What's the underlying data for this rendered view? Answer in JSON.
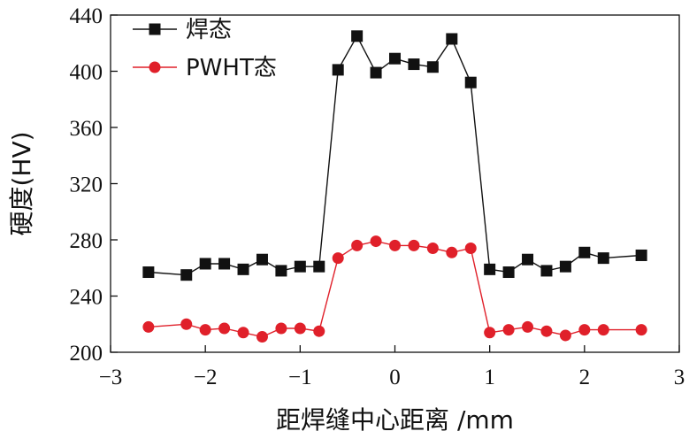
{
  "chart_data": {
    "type": "line",
    "xlabel": "距焊缝中心距离 /mm",
    "ylabel": "硬度(HV)",
    "xlim": [
      -3,
      3
    ],
    "ylim": [
      200,
      440
    ],
    "xticks": [
      "−3",
      "−2",
      "−1",
      "0",
      "1",
      "2",
      "3"
    ],
    "xtick_values": [
      -3,
      -2,
      -1,
      0,
      1,
      2,
      3
    ],
    "yticks": [
      "200",
      "240",
      "280",
      "320",
      "360",
      "400",
      "440"
    ],
    "ytick_values": [
      200,
      240,
      280,
      320,
      360,
      400,
      440
    ],
    "legend_position": "top-left",
    "grid": false,
    "series": [
      {
        "name": "焊态",
        "color": "#111111",
        "marker": "square",
        "x": [
          -2.6,
          -2.2,
          -2.0,
          -1.8,
          -1.6,
          -1.4,
          -1.2,
          -1.0,
          -0.8,
          -0.6,
          -0.4,
          -0.2,
          0.0,
          0.2,
          0.4,
          0.6,
          0.8,
          1.0,
          1.2,
          1.4,
          1.6,
          1.8,
          2.0,
          2.2,
          2.6
        ],
        "y": [
          257,
          255,
          263,
          263,
          259,
          266,
          258,
          261,
          261,
          401,
          425,
          399,
          409,
          405,
          403,
          423,
          392,
          259,
          257,
          266,
          258,
          261,
          271,
          267,
          269
        ]
      },
      {
        "name": "PWHT态",
        "color": "#e0202a",
        "marker": "circle",
        "x": [
          -2.6,
          -2.2,
          -2.0,
          -1.8,
          -1.6,
          -1.4,
          -1.2,
          -1.0,
          -0.8,
          -0.6,
          -0.4,
          -0.2,
          0.0,
          0.2,
          0.4,
          0.6,
          0.8,
          1.0,
          1.2,
          1.4,
          1.6,
          1.8,
          2.0,
          2.2,
          2.6
        ],
        "y": [
          218,
          220,
          216,
          217,
          214,
          211,
          217,
          217,
          215,
          267,
          276,
          279,
          276,
          276,
          274,
          271,
          274,
          214,
          216,
          218,
          215,
          212,
          216,
          216,
          216
        ]
      }
    ]
  }
}
